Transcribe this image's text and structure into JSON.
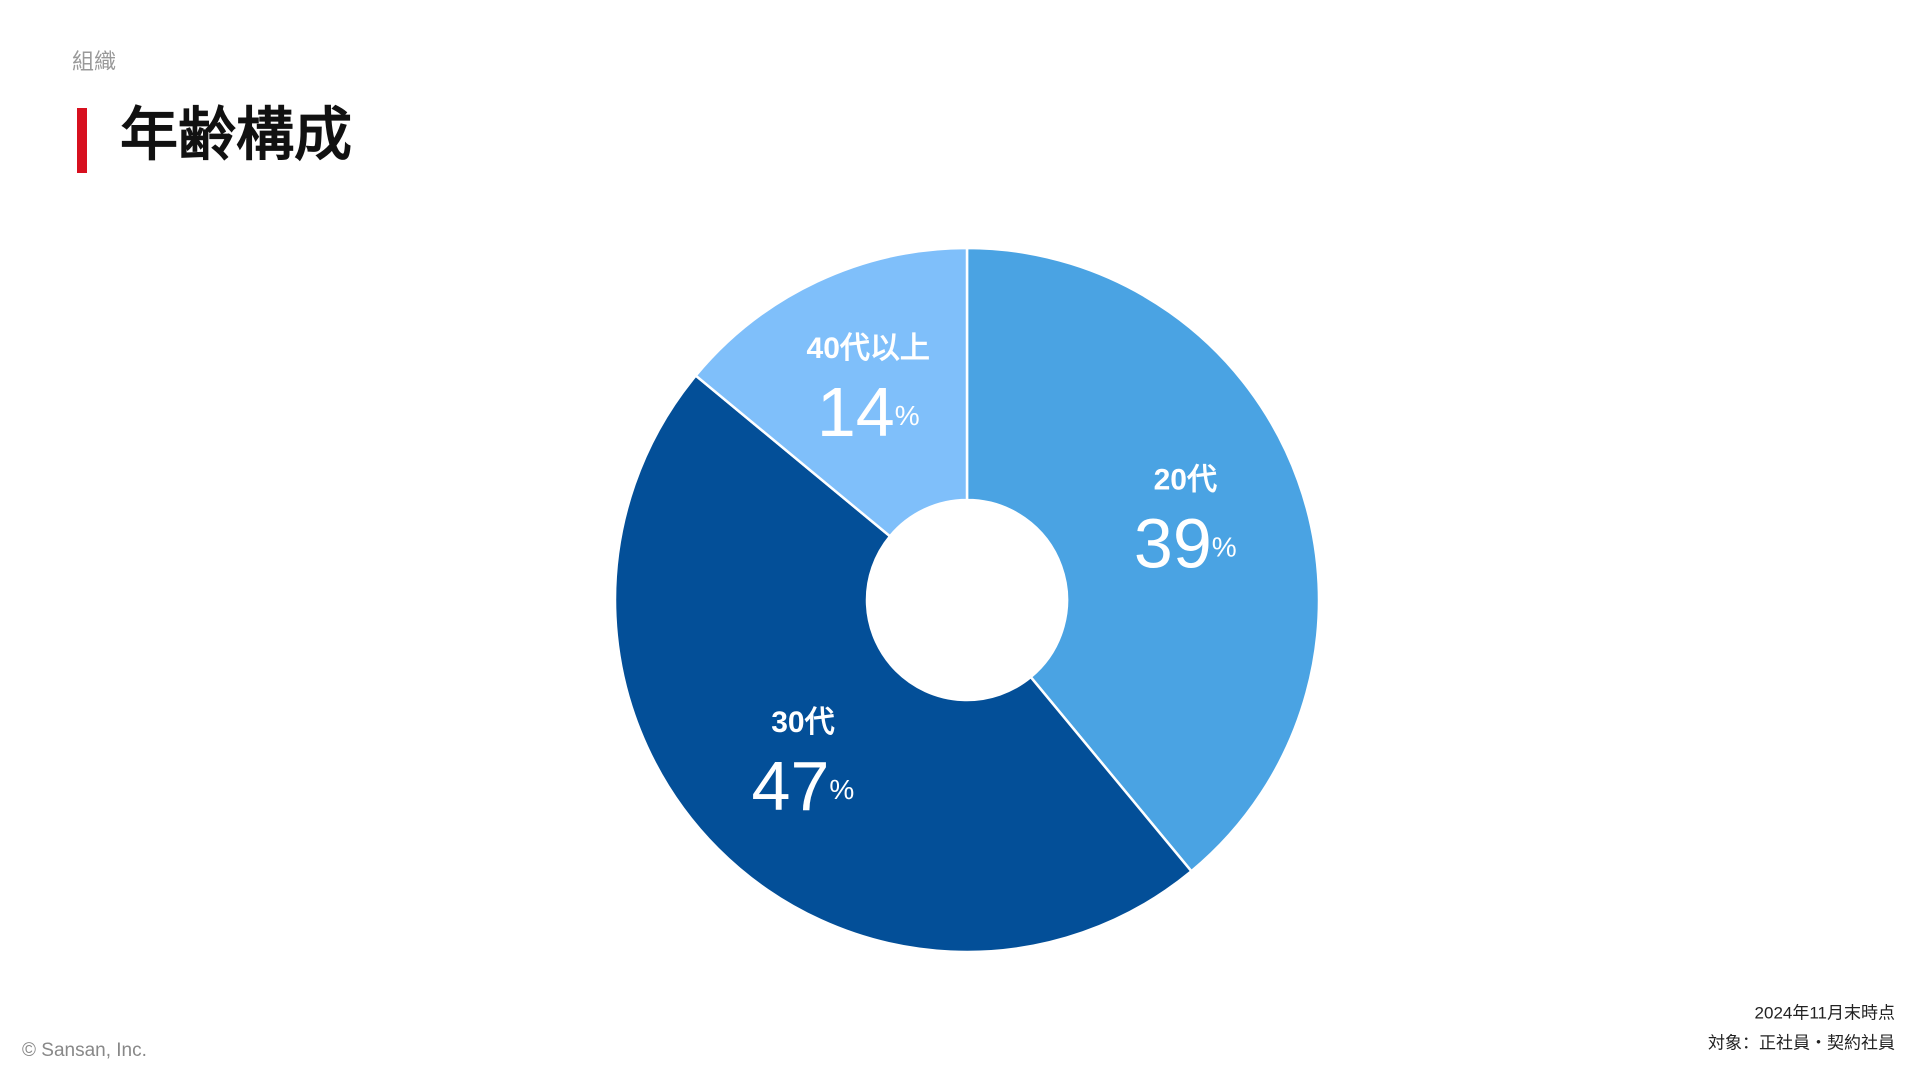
{
  "section": "組織",
  "chart_data": {
    "type": "donut",
    "title": "年齢構成",
    "categories": [
      "20代",
      "30代",
      "40代以上"
    ],
    "values": [
      39,
      47,
      14
    ],
    "value_labels": [
      "39%",
      "47%",
      "14%"
    ],
    "colors": [
      "#4aa3e3",
      "#034f98",
      "#7fbffa"
    ]
  },
  "notes": [
    "2024年11月末時点",
    "対象：正社員・契約社員"
  ],
  "copyright": "© Sansan, Inc."
}
